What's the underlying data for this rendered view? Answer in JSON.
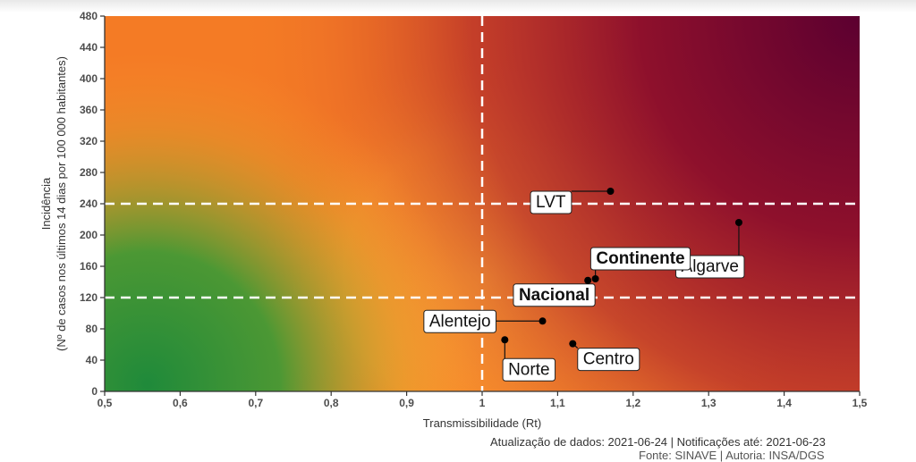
{
  "chart_data": {
    "type": "scatter",
    "xlabel": "Transmissibilidade (Rt)",
    "ylabel_line1": "Incidência",
    "ylabel_line2": "(Nº de casos nos últimos 14 dias por 100 000 habitantes)",
    "xlim": [
      0.5,
      1.5
    ],
    "ylim": [
      0,
      480
    ],
    "x_ticks": [
      "0,5",
      "0,6",
      "0,7",
      "0,8",
      "0,9",
      "1",
      "1,1",
      "1,2",
      "1,3",
      "1,4",
      "1,5"
    ],
    "y_ticks": [
      "0",
      "40",
      "80",
      "120",
      "160",
      "200",
      "240",
      "280",
      "320",
      "360",
      "400",
      "440",
      "480"
    ],
    "reference_lines": {
      "x": [
        1.0
      ],
      "y": [
        120,
        240
      ]
    },
    "points": [
      {
        "label": "LVT",
        "x": 1.17,
        "y": 256,
        "bold": false
      },
      {
        "label": "Algarve",
        "x": 1.34,
        "y": 216,
        "bold": false
      },
      {
        "label": "Continente",
        "x": 1.15,
        "y": 144,
        "bold": true
      },
      {
        "label": "Nacional",
        "x": 1.14,
        "y": 142,
        "bold": true
      },
      {
        "label": "Alentejo",
        "x": 1.08,
        "y": 90,
        "bold": false
      },
      {
        "label": "Norte",
        "x": 1.03,
        "y": 66,
        "bold": false
      },
      {
        "label": "Centro",
        "x": 1.12,
        "y": 61,
        "bold": false
      }
    ],
    "colors": {
      "low": "#1f8a3a",
      "mid": "#ffaa33",
      "orange": "#f47b25",
      "high": "#9a1430",
      "max": "#5c0030"
    }
  },
  "footer": {
    "line1": "Atualização de dados: 2021-06-24 | Notificações até: 2021-06-23",
    "line2": "Fonte: SINAVE | Autoria: INSA/DGS"
  }
}
